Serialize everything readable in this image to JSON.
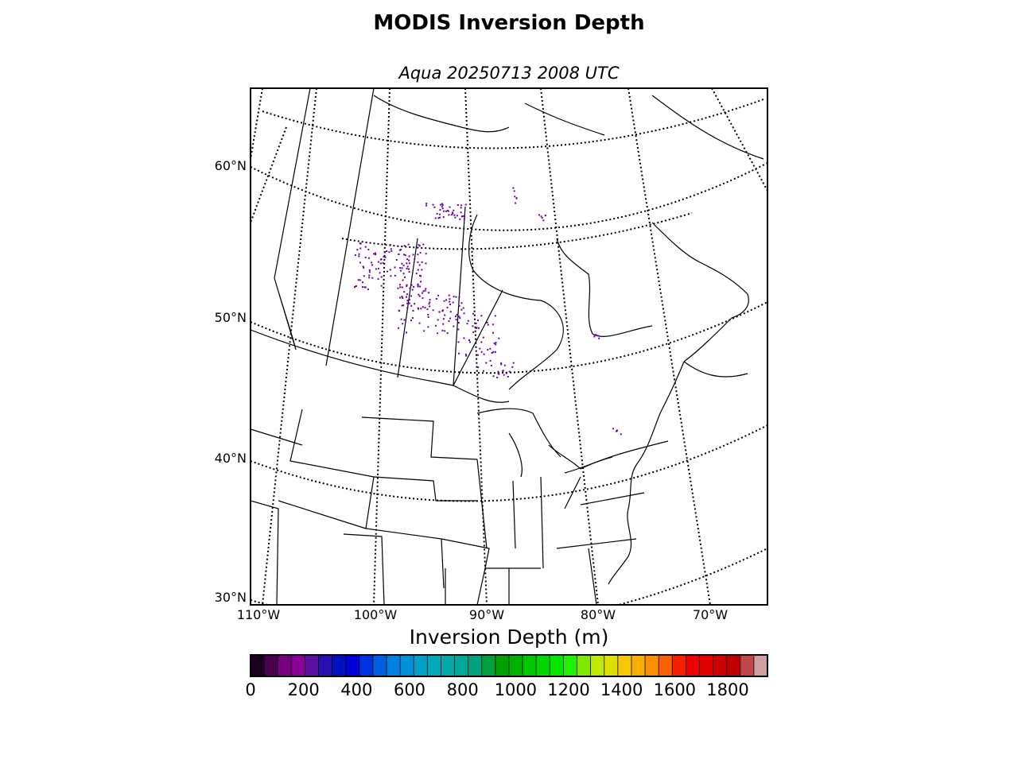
{
  "header": {
    "title": "MODIS Inversion Depth",
    "subtitle": "Aqua 20250713 2008 UTC"
  },
  "map": {
    "projection": "lambert-conformal",
    "lat_labels": [
      "60°N",
      "50°N",
      "40°N",
      "30°N"
    ],
    "lon_labels": [
      "110°W",
      "100°W",
      "90°W",
      "80°W",
      "70°W"
    ],
    "gridline_style": "dotted",
    "data_color": "#6a00a8"
  },
  "colorbar": {
    "title": "Inversion Depth (m)",
    "tick_labels": [
      "0",
      "200",
      "400",
      "600",
      "800",
      "1000",
      "1200",
      "1400",
      "1600",
      "1800"
    ],
    "range": [
      0,
      1950
    ],
    "colors": [
      "#1a0020",
      "#4a0050",
      "#780080",
      "#8a0098",
      "#5a10a0",
      "#2a10b0",
      "#0010c0",
      "#0000d8",
      "#0030e0",
      "#0060e0",
      "#0080e0",
      "#0090d8",
      "#00a0c8",
      "#00a8b8",
      "#00a8a8",
      "#00a898",
      "#00a080",
      "#00a040",
      "#00a000",
      "#00b000",
      "#00c800",
      "#00d800",
      "#00e800",
      "#20f000",
      "#80e800",
      "#c0e800",
      "#e0e000",
      "#f8c800",
      "#f8b000",
      "#f89000",
      "#f86000",
      "#f82000",
      "#f00000",
      "#e00000",
      "#d00000",
      "#c00000",
      "#c04848",
      "#d0a0a0"
    ]
  }
}
